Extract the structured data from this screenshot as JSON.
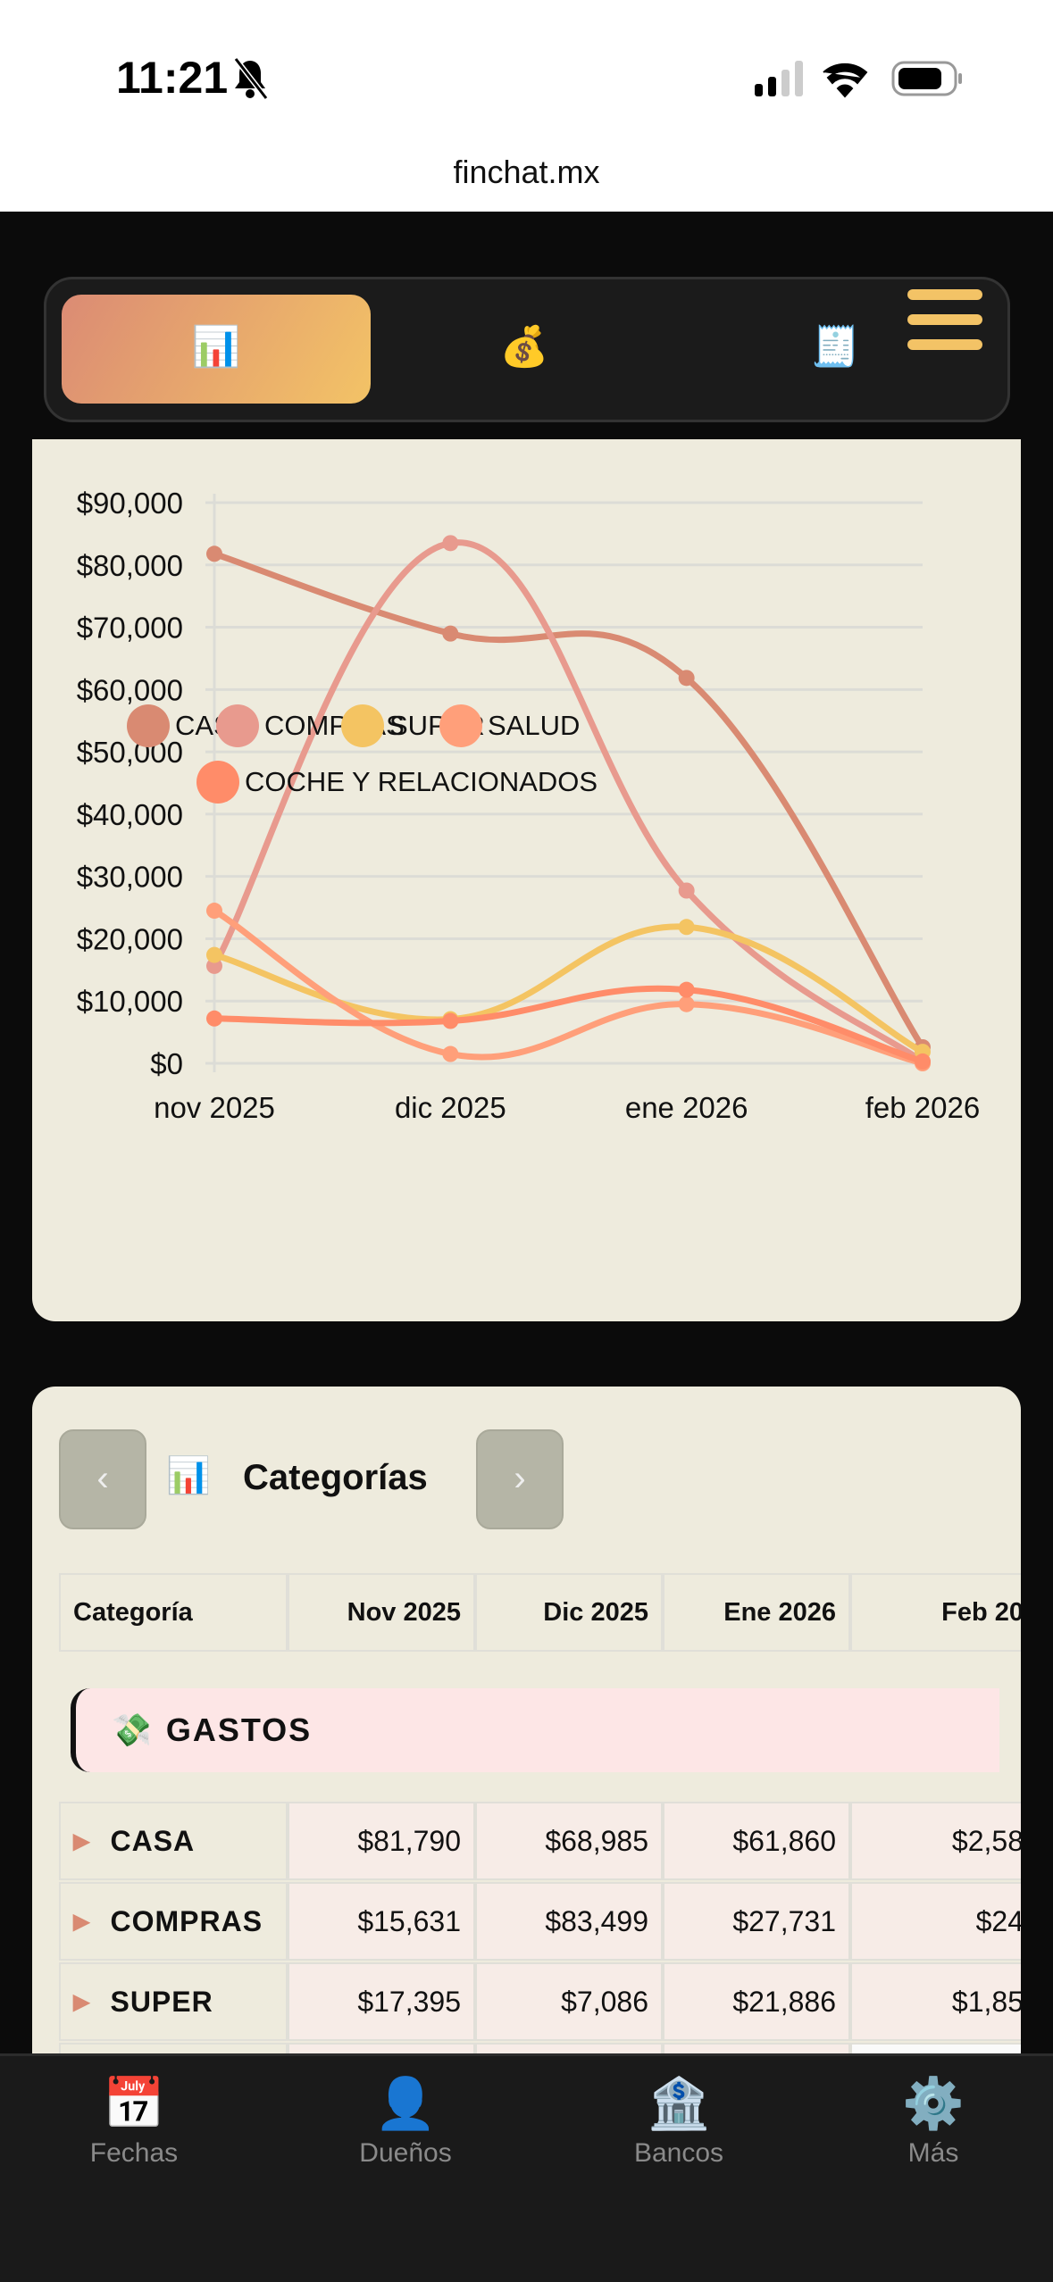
{
  "status_bar": {
    "time": "11:21",
    "silent_icon": "bell-slash-icon",
    "signal_icon": "signal-icon",
    "wifi_icon": "wifi-icon",
    "battery_icon": "battery-icon"
  },
  "browser": {
    "url": "finchat.mx"
  },
  "top_nav": {
    "tabs": [
      {
        "icon": "📊",
        "name": "bar-chart-icon",
        "active": true
      },
      {
        "icon": "💰",
        "name": "money-bag-icon",
        "active": false
      },
      {
        "icon": "🧾",
        "name": "receipt-icon",
        "active": false
      }
    ],
    "menu_icon": "hamburger-menu-icon"
  },
  "chart_data": {
    "type": "line",
    "categories": [
      "nov 2025",
      "dic 2025",
      "ene 2026",
      "feb 2026"
    ],
    "ylim": [
      0,
      90000
    ],
    "yticks": [
      "$0",
      "$10,000",
      "$20,000",
      "$30,000",
      "$40,000",
      "$50,000",
      "$60,000",
      "$70,000",
      "$80,000",
      "$90,000"
    ],
    "grid": true,
    "legend": "bottom",
    "series": [
      {
        "name": "CASA",
        "color": "#d98a72",
        "values": [
          81790,
          68985,
          61860,
          2580
        ]
      },
      {
        "name": "COMPRAS",
        "color": "#e89a8e",
        "values": [
          15631,
          83499,
          27731,
          240
        ]
      },
      {
        "name": "SUPER",
        "color": "#f4c462",
        "values": [
          17395,
          7086,
          21886,
          1850
        ]
      },
      {
        "name": "SALUD",
        "color": "#ff9f7a",
        "values": [
          24500,
          1500,
          9500,
          0
        ]
      },
      {
        "name": "COCHE Y RELACIONADOS",
        "color": "#ff8c69",
        "values": [
          7200,
          6800,
          11800,
          300
        ]
      }
    ]
  },
  "table_section": {
    "prev": "‹",
    "next": "›",
    "title_icon": "📊",
    "title": "Categorías",
    "headers": [
      "Categoría",
      "Nov 2025",
      "Dic 2025",
      "Ene 2026",
      "Feb 20"
    ],
    "group": {
      "icon": "💸",
      "label": "GASTOS"
    },
    "rows": [
      {
        "name": "CASA",
        "values": [
          "$81,790",
          "$68,985",
          "$61,860",
          "$2,58"
        ]
      },
      {
        "name": "COMPRAS",
        "values": [
          "$15,631",
          "$83,499",
          "$27,731",
          "$24"
        ]
      },
      {
        "name": "SUPER",
        "values": [
          "$17,395",
          "$7,086",
          "$21,886",
          "$1,85"
        ]
      }
    ]
  },
  "bottom_nav": [
    {
      "icon": "📅",
      "label": "Fechas"
    },
    {
      "icon": "👤",
      "label": "Dueños"
    },
    {
      "icon": "🏦",
      "label": "Bancos"
    },
    {
      "icon": "⚙️",
      "label": "Más"
    }
  ]
}
